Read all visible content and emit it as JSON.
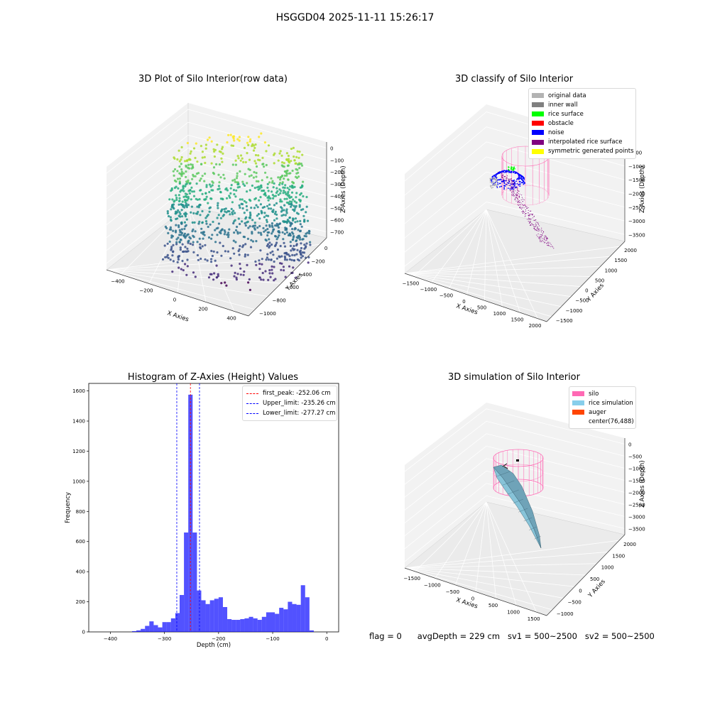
{
  "header": {
    "suptitle": "HSGGD04 2025-11-11 15:26:17"
  },
  "footer": {
    "flag": "flag = 0",
    "avg_depth": "avgDepth = 229 cm",
    "sv1": "sv1 = 500~2500",
    "sv2": "sv2 = 500~2500"
  },
  "colors": {
    "hist_bar": "#0000ff",
    "peak_line": "#ff0000",
    "limit_line": "#0000ff",
    "silo": "#ff69b4",
    "rice_simulation": "#87ceeb",
    "auger": "#ff4500",
    "noise": "#0000ff",
    "interpolated": "#800080",
    "rice_surface": "#00ff00"
  },
  "chart_data": [
    {
      "type": "scatter3d",
      "title": "3D Plot of Silo Interior(row data)",
      "xlabel": "X Axies",
      "ylabel": "Y Axies",
      "zlabel": "Z Axies (Depth)",
      "x_ticks": [
        "−400",
        "−200",
        "0",
        "200",
        "400"
      ],
      "y_ticks": [
        "−1000",
        "−800",
        "−600",
        "−400",
        "−200",
        "0"
      ],
      "z_ticks": [
        "0",
        "−100",
        "−200",
        "−300",
        "−400",
        "−500",
        "−600",
        "−700"
      ],
      "colormap": "viridis"
    },
    {
      "type": "scatter3d",
      "title": "3D classify of Silo Interior",
      "xlabel": "X Axies",
      "ylabel": "Y Axies",
      "zlabel": "Z Axies (Depth)",
      "x_ticks": [
        "−1500",
        "−1000",
        "−500",
        "0",
        "500",
        "1000",
        "1500",
        "2000"
      ],
      "y_ticks": [
        "−1500",
        "−1000",
        "−500",
        "0",
        "500",
        "1000",
        "1500",
        "2000"
      ],
      "z_ticks": [
        "−500",
        "−1000",
        "−1500",
        "−2000",
        "−2500",
        "−3000",
        "−3500"
      ],
      "legend": [
        {
          "name": "original data",
          "color": "#b3b3b3"
        },
        {
          "name": "inner wall",
          "color": "#808080"
        },
        {
          "name": "rice surface",
          "color": "#00ff00"
        },
        {
          "name": "obstacle",
          "color": "#ff0000"
        },
        {
          "name": "noise",
          "color": "#0000ff"
        },
        {
          "name": "interpolated rice surface",
          "color": "#800080"
        },
        {
          "name": "symmetric generated points",
          "color": "#ffff00"
        }
      ],
      "legend_position": "top-right"
    },
    {
      "type": "bar",
      "title": "Histogram of Z-Axies (Height) Values",
      "xlabel": "Depth (cm)",
      "ylabel": "Frequency",
      "xlim": [
        -440,
        22
      ],
      "ylim": [
        0,
        1650
      ],
      "x_ticks": [
        -400,
        -300,
        -200,
        -100,
        0
      ],
      "x_tick_labels": [
        "−400",
        "−300",
        "−200",
        "−100",
        "0"
      ],
      "y_ticks": [
        0,
        200,
        400,
        600,
        800,
        1000,
        1200,
        1400,
        1600
      ],
      "bin_start": -360,
      "bin_width": 8,
      "values": [
        5,
        10,
        20,
        40,
        70,
        45,
        30,
        65,
        65,
        90,
        125,
        245,
        660,
        1575,
        660,
        275,
        210,
        185,
        210,
        220,
        230,
        165,
        85,
        80,
        80,
        85,
        90,
        100,
        90,
        80,
        100,
        130,
        130,
        120,
        160,
        150,
        200,
        185,
        180,
        310,
        230,
        10
      ],
      "lines": [
        {
          "label": "first_peak: -252.06 cm",
          "x": -252.06,
          "color": "#ff0000"
        },
        {
          "label": "Upper_limit: -235.26 cm",
          "x": -235.26,
          "color": "#0000ff"
        },
        {
          "label": "Lower_limit: -277.27 cm",
          "x": -277.27,
          "color": "#0000ff"
        }
      ],
      "legend_position": "top-right"
    },
    {
      "type": "surface3d",
      "title": "3D simulation of Silo Interior",
      "xlabel": "X Axies",
      "ylabel": "Y Axies",
      "zlabel": "Z Axies (Depth)",
      "x_ticks": [
        "−1500",
        "−1000",
        "−500",
        "0",
        "500",
        "1000",
        "1500"
      ],
      "y_ticks": [
        "−1000",
        "−500",
        "0",
        "500",
        "1000",
        "1500",
        "2000"
      ],
      "z_ticks": [
        "0",
        "−500",
        "−1000",
        "−1500",
        "−2000",
        "−2500",
        "−3000",
        "−3500"
      ],
      "legend": [
        {
          "name": "silo",
          "color": "#ff69b4"
        },
        {
          "name": "rice simulation",
          "color": "#87ceeb"
        },
        {
          "name": "auger",
          "color": "#ff4500"
        },
        {
          "name": "center(76,488)",
          "color": ""
        }
      ],
      "legend_position": "top-right"
    }
  ]
}
